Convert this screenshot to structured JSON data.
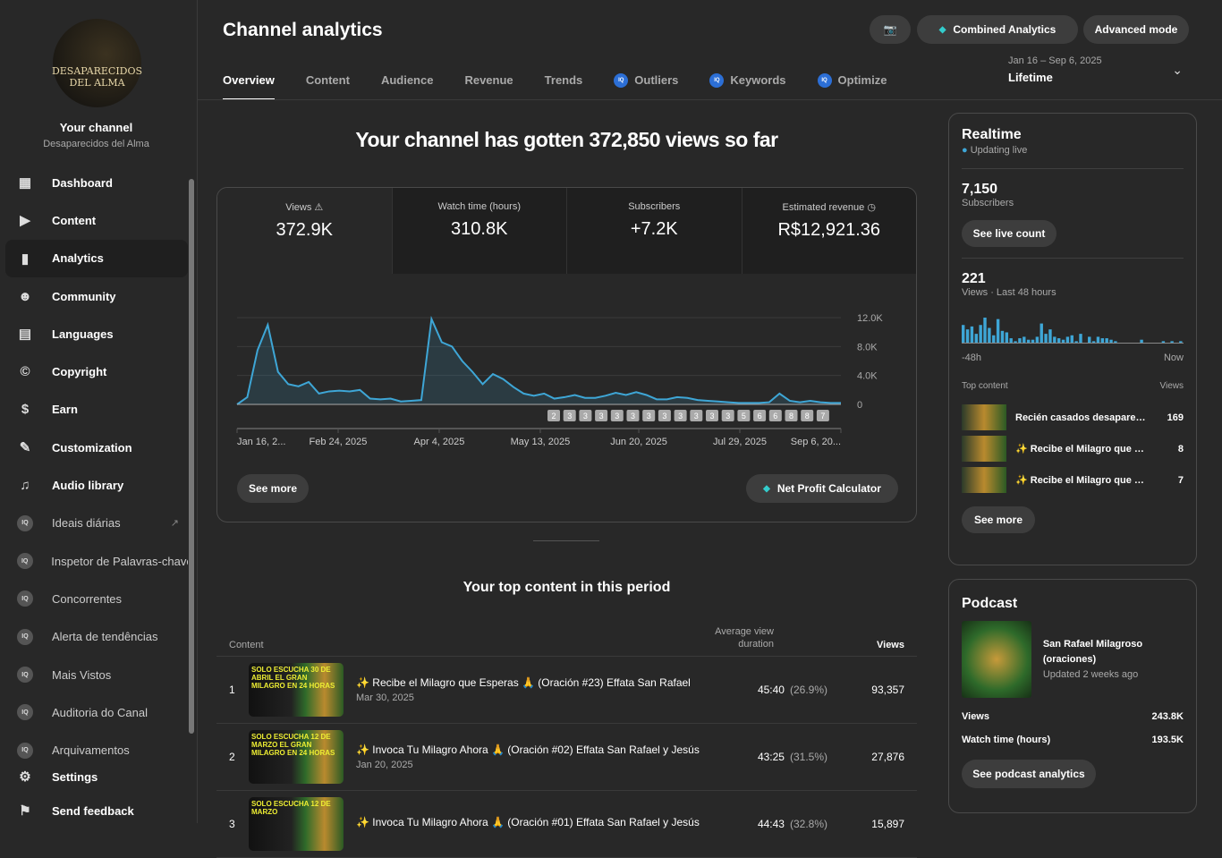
{
  "sidebar": {
    "logo_text": "DESAPARECIDOS DEL ALMA",
    "channel_title": "Your channel",
    "channel_name": "Desaparecidos del Alma",
    "items": [
      {
        "label": "Dashboard",
        "icon": "dashboard-icon"
      },
      {
        "label": "Content",
        "icon": "content-icon"
      },
      {
        "label": "Analytics",
        "icon": "analytics-icon"
      },
      {
        "label": "Community",
        "icon": "community-icon"
      },
      {
        "label": "Languages",
        "icon": "languages-icon"
      },
      {
        "label": "Copyright",
        "icon": "copyright-icon"
      },
      {
        "label": "Earn",
        "icon": "earn-icon"
      },
      {
        "label": "Customization",
        "icon": "customization-icon"
      },
      {
        "label": "Audio library",
        "icon": "audio-library-icon"
      }
    ],
    "ext_items": [
      {
        "label": "Ideais diárias"
      },
      {
        "label": "Inspetor de Palavras-chave"
      },
      {
        "label": "Concorrentes"
      },
      {
        "label": "Alerta de tendências"
      },
      {
        "label": "Mais Vistos"
      },
      {
        "label": "Auditoria do Canal"
      },
      {
        "label": "Arquivamentos"
      }
    ],
    "iq_badge": "IQ",
    "settings": "Settings",
    "feedback": "Send feedback"
  },
  "header": {
    "title": "Channel analytics",
    "combined": "Combined Analytics",
    "advanced": "Advanced mode",
    "tabs": [
      "Overview",
      "Content",
      "Audience",
      "Revenue",
      "Trends",
      "Outliers",
      "Keywords",
      "Optimize"
    ],
    "date_range": "Jan 16 – Sep 6, 2025",
    "period": "Lifetime"
  },
  "overview": {
    "headline": "Your channel has gotten 372,850 views so far",
    "metrics": [
      {
        "label": "Views",
        "value": "372.9K"
      },
      {
        "label": "Watch time (hours)",
        "value": "310.8K"
      },
      {
        "label": "Subscribers",
        "value": "+7.2K"
      },
      {
        "label": "Estimated revenue",
        "value": "R$12,921.36"
      }
    ],
    "see_more": "See more",
    "net_profit": "Net Profit Calculator"
  },
  "chart_data": {
    "type": "area",
    "series": [
      {
        "name": "Views",
        "color": "#3ea6d6",
        "values": [
          0,
          1000,
          7500,
          11000,
          4500,
          2800,
          2500,
          3100,
          1500,
          1800,
          1900,
          1800,
          2000,
          800,
          700,
          800,
          400,
          500,
          600,
          11800,
          8600,
          8000,
          6000,
          4500,
          2800,
          4200,
          3500,
          2400,
          1500,
          1200,
          1500,
          800,
          1000,
          1300,
          900,
          900,
          1200,
          1600,
          1300,
          1700,
          1300,
          700,
          700,
          1000,
          900,
          600,
          500,
          400,
          300,
          200,
          200,
          200,
          300,
          1500,
          500,
          300,
          500,
          300,
          200,
          200
        ]
      }
    ],
    "x_tick_labels": [
      "Jan 16, 2...",
      "Feb 24, 2025",
      "Apr 4, 2025",
      "May 13, 2025",
      "Jun 20, 2025",
      "Jul 29, 2025",
      "Sep 6, 20..."
    ],
    "x_tick_positions": [
      0,
      39,
      78,
      117,
      155,
      194,
      233
    ],
    "x_range_days": [
      0,
      233
    ],
    "y_ticks": [
      "0",
      "4.0K",
      "8.0K",
      "12.0K"
    ],
    "y_tick_values": [
      0,
      4000,
      8000,
      12000
    ],
    "ylim": [
      0,
      12000
    ],
    "upload_markers": [
      "2",
      "3",
      "3",
      "3",
      "3",
      "3",
      "3",
      "3",
      "3",
      "3",
      "3",
      "3",
      "5",
      "6",
      "6",
      "8",
      "8",
      "7"
    ],
    "grid": true
  },
  "top_content": {
    "title": "Your top content in this period",
    "col_content": "Content",
    "col_avd": "Average view duration",
    "col_views": "Views",
    "rows": [
      {
        "n": "1",
        "thumb": "SOLO ESCUCHA 30 DE ABRIL EL GRAN MILAGRO EN 24 HORAS",
        "title": "✨ Recibe el Milagro que Esperas 🙏 (Oración #23) Effata San Rafael",
        "date": "Mar 30, 2025",
        "avd": "45:40",
        "pct": "(26.9%)",
        "views": "93,357"
      },
      {
        "n": "2",
        "thumb": "SOLO ESCUCHA 12 DE MARZO EL GRAN MILAGRO EN 24 HORAS",
        "title": "✨ Invoca Tu Milagro Ahora 🙏 (Oración #02) Effata San Rafael y Jesús",
        "date": "Jan 20, 2025",
        "avd": "43:25",
        "pct": "(31.5%)",
        "views": "27,876"
      },
      {
        "n": "3",
        "thumb": "SOLO ESCUCHA 12 DE MARZO",
        "title": "✨ Invoca Tu Milagro Ahora 🙏 (Oración #01) Effata San Rafael y Jesús",
        "date": "",
        "avd": "44:43",
        "pct": "(32.8%)",
        "views": "15,897"
      }
    ]
  },
  "realtime": {
    "title": "Realtime",
    "status": "Updating live",
    "subs": "7,150",
    "subs_label": "Subscribers",
    "live_btn": "See live count",
    "views": "221",
    "views_label": "Views · Last 48 hours",
    "bars": [
      12,
      9,
      11,
      6,
      12,
      17,
      10,
      5,
      16,
      8,
      7,
      3,
      1,
      3,
      4,
      2,
      2,
      4,
      13,
      6,
      9,
      4,
      3,
      2,
      4,
      5,
      1,
      6,
      0,
      4,
      1,
      4,
      3,
      3,
      2,
      1,
      0,
      0,
      0,
      0,
      0,
      2,
      0,
      0,
      0,
      0,
      1,
      0,
      1,
      0,
      1
    ],
    "start": "-48h",
    "end": "Now",
    "top_label": "Top content",
    "top_views": "Views",
    "top": [
      {
        "title": "Recién casados desaparecidos...",
        "views": "169"
      },
      {
        "title": "✨ Recibe el Milagro que Esperas",
        "views": "8"
      },
      {
        "title": "✨ Recibe el Milagro que Esperas",
        "views": "7"
      }
    ],
    "see_more": "See more"
  },
  "podcast": {
    "title": "Podcast",
    "name": "San Rafael Milagroso (oraciones)",
    "updated": "Updated 2 weeks ago",
    "views_label": "Views",
    "views": "243.8K",
    "wt_label": "Watch time (hours)",
    "wt": "193.5K",
    "btn": "See podcast analytics"
  }
}
